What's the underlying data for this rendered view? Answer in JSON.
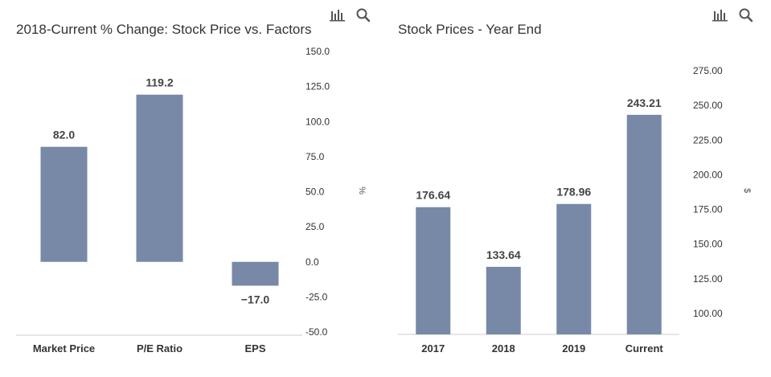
{
  "colors": {
    "bar": "#7789a7",
    "axis": "#cccccc",
    "text": "#333333"
  },
  "charts": [
    {
      "title": "2018-Current % Change: Stock Price vs. Factors",
      "toolbar": {
        "chart_icon": "bar-chart-icon",
        "search_icon": "search-icon"
      }
    },
    {
      "title": "Stock Prices - Year End",
      "toolbar": {
        "chart_icon": "bar-chart-icon",
        "search_icon": "search-icon"
      }
    }
  ],
  "chart_data": [
    {
      "type": "bar",
      "title": "2018-Current % Change: Stock Price vs. Factors",
      "categories": [
        "Market Price",
        "P/E Ratio",
        "EPS"
      ],
      "values": [
        82.0,
        119.2,
        -17.0
      ],
      "value_labels": [
        "82.0",
        "119.2",
        "−17.0"
      ],
      "ylabel": "%",
      "ylim": [
        -50,
        150
      ],
      "yticks": [
        "150.0",
        "125.0",
        "100.0",
        "75.0",
        "50.0",
        "25.0",
        "0.0",
        "-25.0",
        "-50.0"
      ],
      "ytick_values": [
        150,
        125,
        100,
        75,
        50,
        25,
        0,
        -25,
        -50
      ],
      "y_axis_side": "right",
      "grid": false
    },
    {
      "type": "bar",
      "title": "Stock Prices - Year End",
      "categories": [
        "2017",
        "2018",
        "2019",
        "Current"
      ],
      "values": [
        176.64,
        133.64,
        178.96,
        243.21
      ],
      "value_labels": [
        "176.64",
        "133.64",
        "178.96",
        "243.21"
      ],
      "ylabel": "$",
      "ylim": [
        80,
        275
      ],
      "yticks": [
        "275.00",
        "250.00",
        "225.00",
        "200.00",
        "175.00",
        "150.00",
        "125.00",
        "100.00"
      ],
      "ytick_values": [
        275,
        250,
        225,
        200,
        175,
        150,
        125,
        100
      ],
      "y_axis_side": "right",
      "grid": false
    }
  ]
}
